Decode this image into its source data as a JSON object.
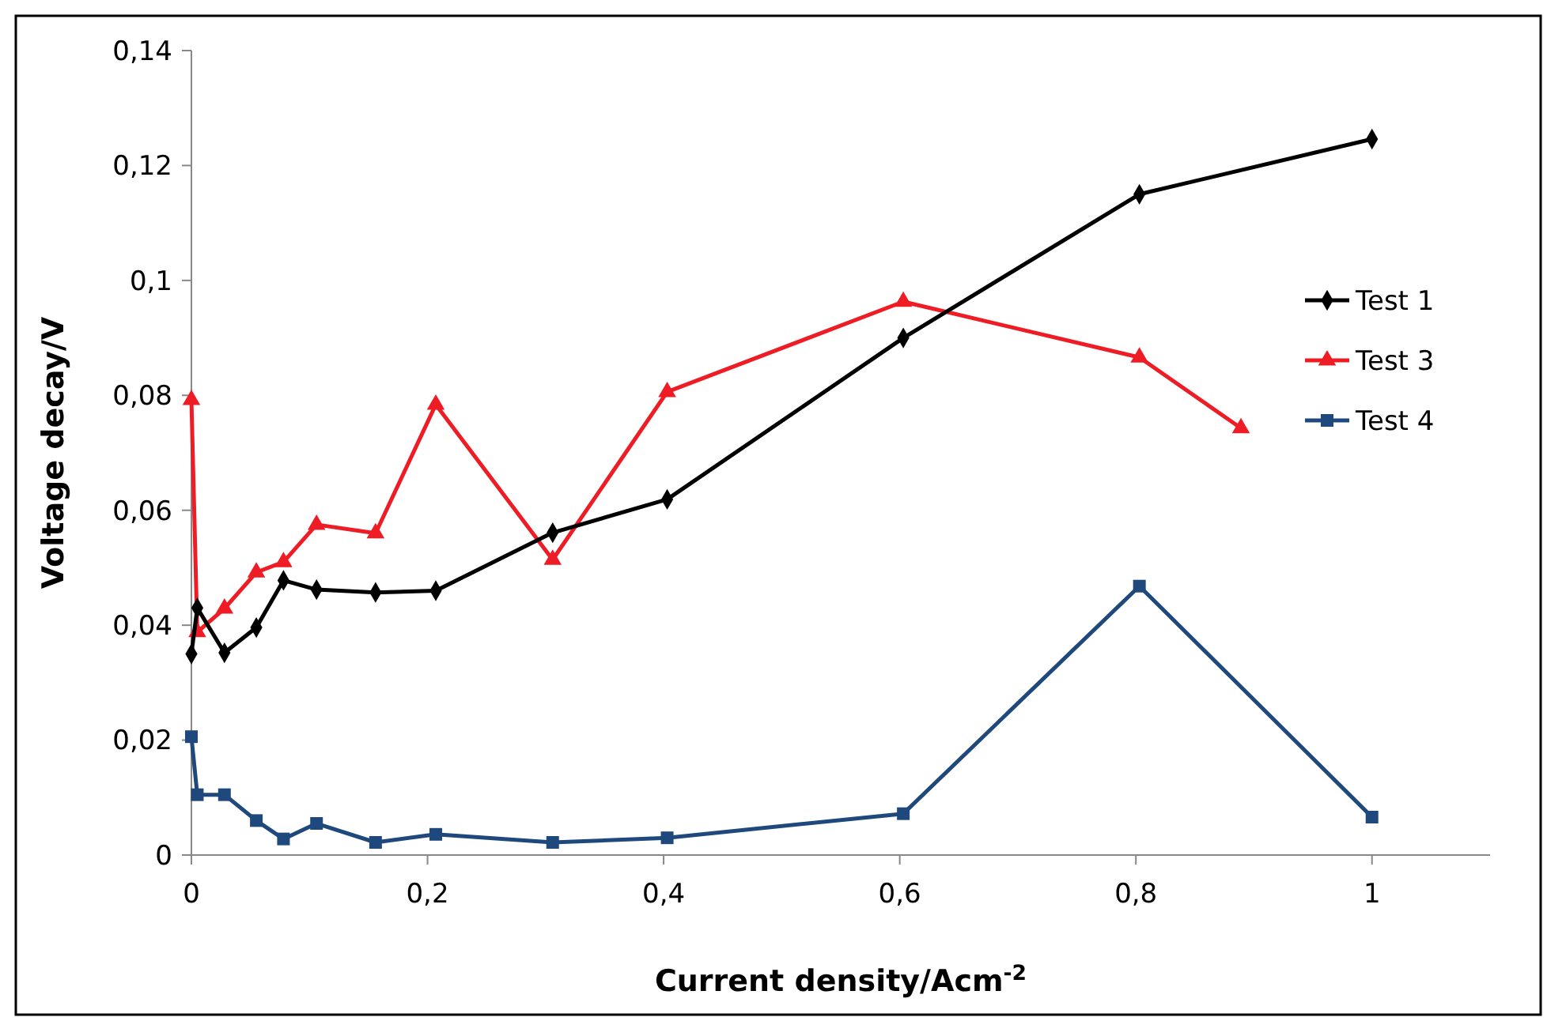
{
  "chart_data": {
    "type": "line",
    "xlabel": "Current density/Acm$^{-2}$",
    "ylabel": "Voltage decay/V",
    "xlim": [
      0,
      1.1
    ],
    "ylim": [
      0,
      0.14
    ],
    "xticks": [
      {
        "value": 0,
        "label": "0"
      },
      {
        "value": 0.2,
        "label": "0,2"
      },
      {
        "value": 0.4,
        "label": "0,4"
      },
      {
        "value": 0.6,
        "label": "0,6"
      },
      {
        "value": 0.8,
        "label": "0,8"
      },
      {
        "value": 1,
        "label": "1"
      }
    ],
    "yticks": [
      {
        "value": 0,
        "label": "0"
      },
      {
        "value": 0.02,
        "label": "0,02"
      },
      {
        "value": 0.04,
        "label": "0,04"
      },
      {
        "value": 0.06,
        "label": "0,06"
      },
      {
        "value": 0.08,
        "label": "0,08"
      },
      {
        "value": 0.1,
        "label": "0,1"
      },
      {
        "value": 0.12,
        "label": "0,12"
      },
      {
        "value": 0.14,
        "label": "0,14"
      }
    ],
    "grid": false,
    "legend": "right",
    "line_style": "solid",
    "series": [
      {
        "name": "Test 1",
        "color": "#000000",
        "marker": "diamond",
        "x": [
          0,
          0.005,
          0.028,
          0.055,
          0.078,
          0.106,
          0.156,
          0.207,
          0.306,
          0.403,
          0.603,
          0.803,
          1.0
        ],
        "values": [
          0.035,
          0.043,
          0.0352,
          0.0396,
          0.0478,
          0.0462,
          0.0457,
          0.046,
          0.0561,
          0.0619,
          0.09,
          0.115,
          0.1246
        ]
      },
      {
        "name": "Test 3",
        "color": "#ee1c25",
        "marker": "triangle",
        "x": [
          0,
          0.005,
          0.028,
          0.055,
          0.078,
          0.106,
          0.156,
          0.207,
          0.306,
          0.403,
          0.603,
          0.803,
          0.889
        ],
        "values": [
          0.0792,
          0.0388,
          0.0429,
          0.0492,
          0.051,
          0.0575,
          0.056,
          0.0784,
          0.0514,
          0.0806,
          0.0963,
          0.0866,
          0.0743
        ]
      },
      {
        "name": "Test 4",
        "color": "#1f497d",
        "marker": "square",
        "x": [
          0,
          0.005,
          0.028,
          0.055,
          0.078,
          0.106,
          0.156,
          0.207,
          0.306,
          0.403,
          0.603,
          0.803,
          1.0
        ],
        "values": [
          0.0206,
          0.0105,
          0.0105,
          0.006,
          0.0028,
          0.0055,
          0.0022,
          0.0036,
          0.0022,
          0.003,
          0.0072,
          0.0468,
          0.0066
        ]
      }
    ]
  }
}
